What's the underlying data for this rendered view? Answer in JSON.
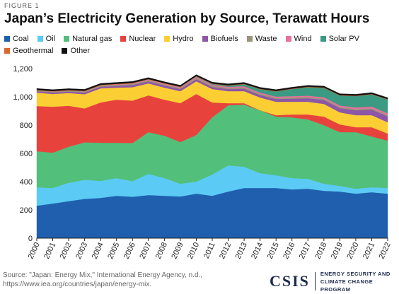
{
  "figure_label": "FIGURE 1",
  "source_line1": "Source: \"Japan: Energy Mix,\" International Energy Agency, n.d.,",
  "source_line2": "https://www.iea.org/countries/japan/energy-mix.",
  "logo": {
    "mark": "CSIS",
    "sub_line1": "ENERGY SECURITY AND",
    "sub_line2": "CLIMATE CHANGE PROGRAM"
  },
  "chart_data": {
    "type": "area",
    "stacked": true,
    "title": "Japan’s Electricity Generation by Source, Terawatt Hours",
    "xlabel": "",
    "ylabel": "",
    "ylim": [
      0,
      1200
    ],
    "yticks": [
      0,
      200,
      400,
      600,
      800,
      1000,
      1200
    ],
    "ytick_labels": [
      "0",
      "200",
      "400",
      "600",
      "800",
      "1,000",
      "1,200"
    ],
    "grid": false,
    "legend_position": "top",
    "x": [
      "2000",
      "2001",
      "2002",
      "2003",
      "2004",
      "2005",
      "2006",
      "2007",
      "2008",
      "2009",
      "2010",
      "2011",
      "2012",
      "2013",
      "2014",
      "2015",
      "2016",
      "2017",
      "2018",
      "2019",
      "2020",
      "2021",
      "2022"
    ],
    "series": [
      {
        "name": "Coal",
        "color": "#1f5fae",
        "values": [
          230,
          245,
          262,
          278,
          285,
          300,
          293,
          305,
          300,
          295,
          315,
          300,
          330,
          355,
          355,
          355,
          345,
          350,
          335,
          330,
          315,
          325,
          315
        ]
      },
      {
        "name": "Oil",
        "color": "#5bcbf5",
        "values": [
          130,
          110,
          130,
          135,
          120,
          125,
          110,
          150,
          125,
          90,
          85,
          150,
          185,
          150,
          105,
          90,
          80,
          70,
          50,
          40,
          35,
          35,
          40
        ]
      },
      {
        "name": "Natural gas",
        "color": "#52bf7a",
        "values": [
          255,
          250,
          255,
          265,
          270,
          250,
          270,
          295,
          300,
          295,
          330,
          405,
          425,
          440,
          445,
          415,
          430,
          420,
          415,
          380,
          400,
          360,
          335
        ]
      },
      {
        "name": "Nuclear",
        "color": "#e8423c",
        "values": [
          320,
          325,
          290,
          240,
          285,
          305,
          300,
          260,
          255,
          275,
          290,
          105,
          15,
          10,
          0,
          10,
          20,
          35,
          60,
          55,
          35,
          65,
          50
        ]
      },
      {
        "name": "Hydro",
        "color": "#fbcf33",
        "values": [
          95,
          90,
          90,
          100,
          100,
          85,
          95,
          85,
          85,
          85,
          90,
          95,
          85,
          85,
          90,
          95,
          90,
          90,
          90,
          85,
          85,
          85,
          80
        ]
      },
      {
        "name": "Biofuels",
        "color": "#8d56a6",
        "values": [
          10,
          10,
          10,
          12,
          12,
          12,
          15,
          15,
          15,
          15,
          15,
          15,
          15,
          18,
          18,
          20,
          22,
          25,
          28,
          30,
          35,
          40,
          42
        ]
      },
      {
        "name": "Waste",
        "color": "#9b9478",
        "values": [
          5,
          6,
          6,
          7,
          7,
          8,
          8,
          8,
          8,
          8,
          9,
          9,
          9,
          9,
          9,
          9,
          9,
          9,
          9,
          9,
          9,
          9,
          9
        ]
      },
      {
        "name": "Wind",
        "color": "#e86f9e",
        "values": [
          1,
          2,
          2,
          3,
          3,
          4,
          5,
          5,
          6,
          6,
          7,
          7,
          7,
          8,
          8,
          8,
          9,
          9,
          10,
          10,
          11,
          12,
          13
        ]
      },
      {
        "name": "Solar PV",
        "color": "#3a9a82",
        "values": [
          0,
          0,
          0,
          0,
          0,
          0,
          0,
          0,
          0,
          0,
          3,
          5,
          8,
          14,
          24,
          36,
          50,
          60,
          66,
          70,
          80,
          86,
          97
        ]
      },
      {
        "name": "Geothermal",
        "color": "#d9692e",
        "values": [
          3,
          3,
          3,
          3,
          3,
          3,
          3,
          3,
          3,
          3,
          3,
          3,
          3,
          3,
          3,
          3,
          3,
          3,
          3,
          3,
          3,
          3,
          3
        ]
      },
      {
        "name": "Other",
        "color": "#111111",
        "values": [
          10,
          10,
          10,
          10,
          10,
          10,
          10,
          10,
          10,
          10,
          10,
          10,
          10,
          10,
          10,
          10,
          10,
          10,
          10,
          10,
          10,
          10,
          10
        ]
      }
    ]
  }
}
